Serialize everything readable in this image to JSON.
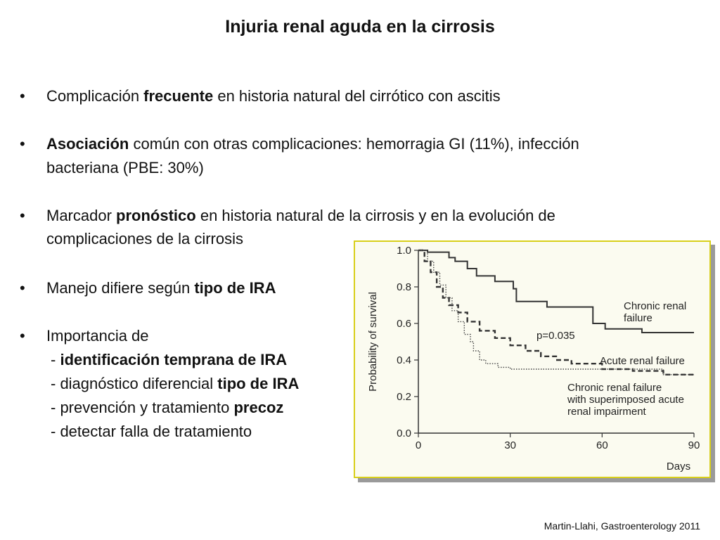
{
  "slide": {
    "title": "Injuria renal aguda en la cirrosis",
    "bullets": [
      {
        "parts": [
          {
            "text": "Complicación "
          },
          {
            "text": "frecuente",
            "bold": true
          },
          {
            "text": " en historia natural del cirrótico con ascitis"
          }
        ]
      },
      {
        "parts": [
          {
            "text": "Asociación",
            "bold": true
          },
          {
            "text": " común con otras complicaciones: hemorragia GI (11%),  infección"
          }
        ],
        "continuation": "bacteriana (PBE: 30%)"
      },
      {
        "parts": [
          {
            "text": "Marcador "
          },
          {
            "text": "pronóstico",
            "bold": true
          },
          {
            "text": " en historia natural de la cirrosis y en la evolución de"
          }
        ],
        "continuation": "complicaciones de la cirrosis"
      },
      {
        "parts": [
          {
            "text": "Manejo difiere según "
          },
          {
            "text": "tipo de IRA",
            "bold": true
          }
        ]
      },
      {
        "parts": [
          {
            "text": "Importancia de"
          }
        ]
      }
    ],
    "subitems": [
      [
        {
          "text": "- "
        },
        {
          "text": "identificación temprana de IRA",
          "bold": true
        }
      ],
      [
        {
          "text": "- diagnóstico diferencial "
        },
        {
          "text": "tipo de IRA",
          "bold": true
        }
      ],
      [
        {
          "text": "- prevención y  tratamiento "
        },
        {
          "text": "precoz",
          "bold": true
        }
      ],
      [
        {
          "text": "- detectar falla de tratamiento"
        }
      ]
    ],
    "credit": "Martin-Llahi, Gastroenterology 2011"
  },
  "chart_data": {
    "type": "line",
    "subtype": "kaplan-meier step",
    "ylabel": "Probability of survival",
    "xlabel": "Days",
    "xlim": [
      0,
      90
    ],
    "ylim": [
      0,
      1
    ],
    "xticks": [
      "0",
      "30",
      "60",
      "90"
    ],
    "yticks": [
      "0.0",
      "0.2",
      "0.4",
      "0.6",
      "0.8",
      "1.0"
    ],
    "annotation": "p=0.035",
    "series": [
      {
        "name": "Chronic renal failure",
        "label_lines": [
          "Chronic renal",
          "failure"
        ],
        "style": "solid",
        "x": [
          0,
          3,
          6,
          10,
          12,
          14,
          16,
          19,
          21,
          24,
          25,
          26,
          28,
          30,
          31,
          32,
          40,
          42,
          46,
          57,
          59,
          61,
          71,
          73,
          90
        ],
        "y": [
          1.0,
          0.99,
          0.99,
          0.96,
          0.94,
          0.94,
          0.9,
          0.86,
          0.86,
          0.86,
          0.83,
          0.83,
          0.83,
          0.83,
          0.79,
          0.72,
          0.72,
          0.69,
          0.69,
          0.6,
          0.6,
          0.57,
          0.57,
          0.55,
          0.55
        ]
      },
      {
        "name": "Acute renal failure",
        "label_lines": [
          "Acute renal failure"
        ],
        "style": "dashed",
        "x": [
          0,
          2,
          4,
          6,
          8,
          10,
          13,
          16,
          20,
          25,
          30,
          35,
          40,
          45,
          50,
          60,
          70,
          80,
          90
        ],
        "y": [
          1.0,
          0.94,
          0.88,
          0.8,
          0.74,
          0.7,
          0.66,
          0.61,
          0.56,
          0.52,
          0.48,
          0.45,
          0.42,
          0.4,
          0.38,
          0.35,
          0.34,
          0.32,
          0.31
        ]
      },
      {
        "name": "Chronic renal failure with superimposed acute renal impairment",
        "label_lines": [
          "Chronic renal failure",
          "with superimposed acute",
          "renal impairment"
        ],
        "style": "dotted",
        "x": [
          0,
          3,
          5,
          7,
          9,
          11,
          13,
          15,
          17,
          18,
          20,
          22,
          25,
          26,
          30,
          60,
          78,
          80,
          90
        ],
        "y": [
          1.0,
          0.94,
          0.88,
          0.81,
          0.74,
          0.67,
          0.61,
          0.54,
          0.5,
          0.45,
          0.4,
          0.38,
          0.38,
          0.36,
          0.35,
          0.35,
          0.35,
          0.32,
          0.32
        ]
      }
    ]
  }
}
